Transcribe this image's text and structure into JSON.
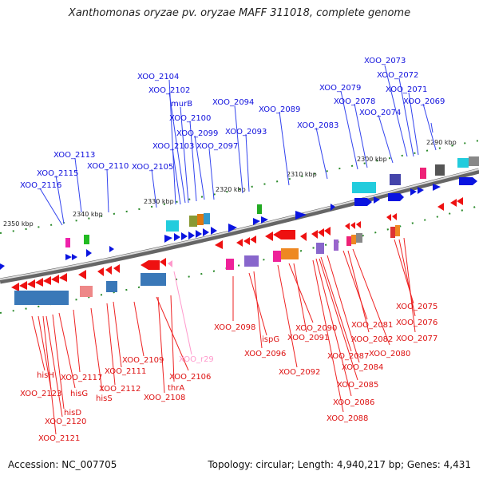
{
  "title": "Xanthomonas oryzae pv. oryzae MAFF 311018, complete genome",
  "footer": {
    "accession": "Accession: NC_007705",
    "summary": "Topology: circular; Length: 4,940,217 bp; Genes: 4,431"
  },
  "colors": {
    "forward_gene": "#0000ee",
    "reverse_gene": "#ee0000",
    "rna_gene": "#ff99cc",
    "tick_mark": "#229922"
  },
  "kbp_ticks": [
    {
      "id": "2350",
      "text": "2350 kbp"
    },
    {
      "id": "2340",
      "text": "2340 kbp"
    },
    {
      "id": "2330",
      "text": "2330 kbp"
    },
    {
      "id": "2320",
      "text": "2320 kbp"
    },
    {
      "id": "2310",
      "text": "2310 kbp"
    },
    {
      "id": "2300",
      "text": "2300 kbp"
    },
    {
      "id": "2290",
      "text": "2290 kbp"
    }
  ],
  "forward_labels": [
    "XOO_2073",
    "XOO_2072",
    "XOO_2071",
    "XOO_2069",
    "XOO_2079",
    "XOO_2078",
    "XOO_2074",
    "XOO_2104",
    "XOO_2102",
    "murB",
    "XOO_2100",
    "XOO_2099",
    "XOO_2103",
    "XOO_2097",
    "XOO_2094",
    "XOO_2089",
    "XOO_2093",
    "XOO_2083",
    "XOO_2113",
    "XOO_2110",
    "XOO_2105",
    "XOO_2115",
    "XOO_2116"
  ],
  "reverse_labels": [
    "XOO_2098",
    "ispG",
    "XOO_2096",
    "XOO_2090",
    "XOO_2091",
    "XOO_2092",
    "XOO_2081",
    "XOO_2082",
    "XOO_2080",
    "XOO_2087",
    "XOO_2084",
    "XOO_2085",
    "XOO_2086",
    "XOO_2088",
    "XOO_2075",
    "XOO_2076",
    "XOO_2077",
    "XOO_2109",
    "XOO_2111",
    "XOO_2106",
    "XOO_2112",
    "thrA",
    "XOO_2108",
    "XOO_2117",
    "hisS",
    "hisG",
    "hisH",
    "XOO_2123",
    "hisD",
    "XOO_2120",
    "XOO_2121"
  ],
  "rna_labels": [
    "XOO_r29"
  ]
}
